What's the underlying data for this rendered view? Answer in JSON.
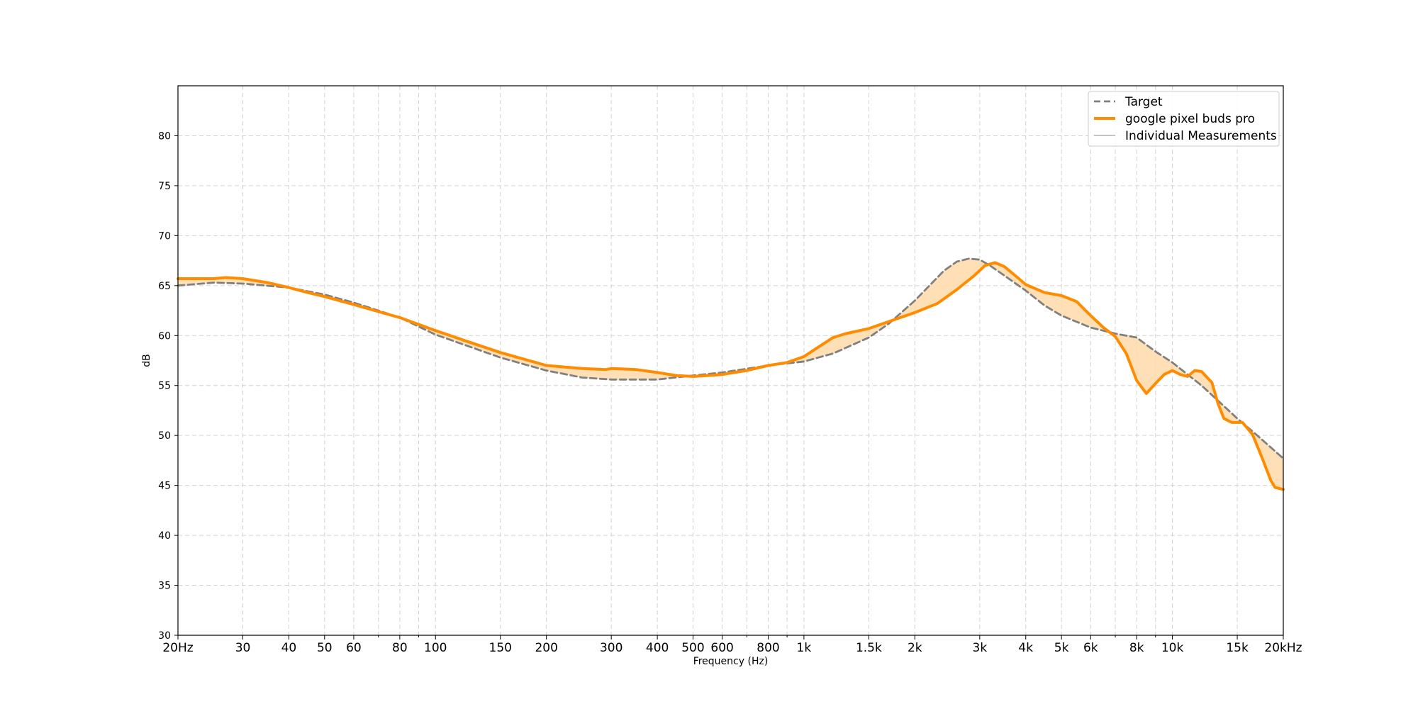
{
  "chart_data": {
    "type": "line",
    "xlabel": "Frequency (Hz)",
    "ylabel": "dB",
    "x_scale": "log",
    "xlim": [
      20,
      20000
    ],
    "ylim": [
      30,
      85
    ],
    "grid": true,
    "legend_position": "top-right",
    "x_ticks": [
      {
        "value": 20,
        "label": "20Hz"
      },
      {
        "value": 30,
        "label": "30"
      },
      {
        "value": 40,
        "label": "40"
      },
      {
        "value": 50,
        "label": "50"
      },
      {
        "value": 60,
        "label": "60"
      },
      {
        "value": 80,
        "label": "80"
      },
      {
        "value": 100,
        "label": "100"
      },
      {
        "value": 150,
        "label": "150"
      },
      {
        "value": 200,
        "label": "200"
      },
      {
        "value": 300,
        "label": "300"
      },
      {
        "value": 400,
        "label": "400"
      },
      {
        "value": 500,
        "label": "500"
      },
      {
        "value": 600,
        "label": "600"
      },
      {
        "value": 800,
        "label": "800"
      },
      {
        "value": 1000,
        "label": "1k"
      },
      {
        "value": 1500,
        "label": "1.5k"
      },
      {
        "value": 2000,
        "label": "2k"
      },
      {
        "value": 3000,
        "label": "3k"
      },
      {
        "value": 4000,
        "label": "4k"
      },
      {
        "value": 5000,
        "label": "5k"
      },
      {
        "value": 6000,
        "label": "6k"
      },
      {
        "value": 8000,
        "label": "8k"
      },
      {
        "value": 10000,
        "label": "10k"
      },
      {
        "value": 15000,
        "label": "15k"
      },
      {
        "value": 20000,
        "label": "20kHz"
      }
    ],
    "x_minor_grid": [
      70,
      90,
      700,
      900,
      7000,
      9000
    ],
    "y_ticks": [
      30,
      35,
      40,
      45,
      50,
      55,
      60,
      65,
      70,
      75,
      80
    ],
    "series": [
      {
        "name": "Target",
        "style": "dashed",
        "color": "#808080",
        "points": [
          [
            20,
            65.0
          ],
          [
            25,
            65.3
          ],
          [
            30,
            65.2
          ],
          [
            40,
            64.8
          ],
          [
            50,
            64.1
          ],
          [
            60,
            63.3
          ],
          [
            80,
            61.8
          ],
          [
            100,
            60.1
          ],
          [
            150,
            57.8
          ],
          [
            200,
            56.5
          ],
          [
            250,
            55.8
          ],
          [
            300,
            55.6
          ],
          [
            400,
            55.6
          ],
          [
            500,
            56.0
          ],
          [
            600,
            56.3
          ],
          [
            800,
            57.0
          ],
          [
            1000,
            57.4
          ],
          [
            1200,
            58.2
          ],
          [
            1500,
            59.8
          ],
          [
            1700,
            61.2
          ],
          [
            2000,
            63.5
          ],
          [
            2400,
            66.5
          ],
          [
            2600,
            67.4
          ],
          [
            2800,
            67.7
          ],
          [
            3000,
            67.6
          ],
          [
            3200,
            67.0
          ],
          [
            3500,
            66.0
          ],
          [
            4000,
            64.5
          ],
          [
            4500,
            63.0
          ],
          [
            5000,
            62.0
          ],
          [
            6000,
            60.8
          ],
          [
            7000,
            60.2
          ],
          [
            8000,
            59.8
          ],
          [
            9000,
            58.4
          ],
          [
            10000,
            57.3
          ],
          [
            12000,
            55.0
          ],
          [
            15000,
            51.7
          ],
          [
            17000,
            50.0
          ],
          [
            20000,
            47.7
          ]
        ]
      },
      {
        "name": "google pixel buds pro",
        "style": "solid",
        "color": "#ff8c00",
        "points": [
          [
            20,
            65.7
          ],
          [
            25,
            65.7
          ],
          [
            27,
            65.8
          ],
          [
            30,
            65.7
          ],
          [
            35,
            65.3
          ],
          [
            40,
            64.8
          ],
          [
            45,
            64.3
          ],
          [
            50,
            63.9
          ],
          [
            60,
            63.1
          ],
          [
            70,
            62.4
          ],
          [
            80,
            61.8
          ],
          [
            100,
            60.5
          ],
          [
            120,
            59.5
          ],
          [
            150,
            58.3
          ],
          [
            200,
            57.0
          ],
          [
            250,
            56.7
          ],
          [
            290,
            56.6
          ],
          [
            300,
            56.7
          ],
          [
            350,
            56.6
          ],
          [
            400,
            56.3
          ],
          [
            450,
            56.0
          ],
          [
            500,
            55.9
          ],
          [
            550,
            56.0
          ],
          [
            600,
            56.1
          ],
          [
            700,
            56.5
          ],
          [
            800,
            57.0
          ],
          [
            900,
            57.3
          ],
          [
            1000,
            57.9
          ],
          [
            1100,
            58.9
          ],
          [
            1200,
            59.8
          ],
          [
            1300,
            60.2
          ],
          [
            1500,
            60.7
          ],
          [
            1700,
            61.4
          ],
          [
            2000,
            62.3
          ],
          [
            2300,
            63.2
          ],
          [
            2600,
            64.6
          ],
          [
            2900,
            66.0
          ],
          [
            3100,
            67.0
          ],
          [
            3300,
            67.3
          ],
          [
            3500,
            66.9
          ],
          [
            3800,
            65.8
          ],
          [
            4000,
            65.1
          ],
          [
            4500,
            64.3
          ],
          [
            5000,
            64.0
          ],
          [
            5500,
            63.4
          ],
          [
            6000,
            62.0
          ],
          [
            6500,
            60.8
          ],
          [
            7000,
            59.9
          ],
          [
            7500,
            58.2
          ],
          [
            8000,
            55.5
          ],
          [
            8500,
            54.2
          ],
          [
            9000,
            55.2
          ],
          [
            9500,
            56.1
          ],
          [
            10000,
            56.5
          ],
          [
            10500,
            56.1
          ],
          [
            11000,
            55.9
          ],
          [
            11500,
            56.5
          ],
          [
            12000,
            56.4
          ],
          [
            12800,
            55.3
          ],
          [
            13300,
            53.2
          ],
          [
            13800,
            51.7
          ],
          [
            14500,
            51.3
          ],
          [
            15500,
            51.3
          ],
          [
            16500,
            50.1
          ],
          [
            17500,
            47.8
          ],
          [
            18500,
            45.5
          ],
          [
            19000,
            44.8
          ],
          [
            20000,
            44.6
          ]
        ]
      },
      {
        "name": "Individual Measurements",
        "style": "solid",
        "color": "#b0b0b0",
        "points": []
      }
    ],
    "fill_between": {
      "series_a": "Target",
      "series_b": "google pixel buds pro",
      "color": "#ffd9a8"
    }
  }
}
